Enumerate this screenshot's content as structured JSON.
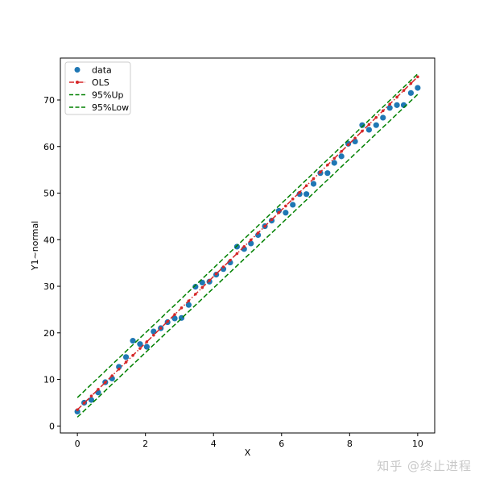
{
  "chart_data": {
    "type": "scatter",
    "xlabel": "X",
    "ylabel": "Y1~normal",
    "xlim": [
      -0.5,
      10.5
    ],
    "ylim": [
      -1.5,
      79
    ],
    "xticks": [
      0,
      2,
      4,
      6,
      8,
      10
    ],
    "yticks": [
      0,
      10,
      20,
      30,
      40,
      50,
      60,
      70
    ],
    "grid": false,
    "legend_position": "top-left",
    "x": [
      0,
      0.2,
      0.41,
      0.61,
      0.82,
      1.02,
      1.22,
      1.43,
      1.63,
      1.84,
      2.04,
      2.24,
      2.45,
      2.65,
      2.86,
      3.06,
      3.27,
      3.47,
      3.67,
      3.88,
      4.08,
      4.29,
      4.49,
      4.69,
      4.9,
      5.1,
      5.31,
      5.51,
      5.71,
      5.92,
      6.12,
      6.33,
      6.53,
      6.73,
      6.94,
      7.14,
      7.35,
      7.55,
      7.76,
      7.96,
      8.16,
      8.37,
      8.57,
      8.78,
      8.98,
      9.18,
      9.39,
      9.59,
      9.8,
      10
    ],
    "series": [
      {
        "name": "data",
        "style": "markers",
        "color": "#1f77b4",
        "values": [
          3.1,
          5.0,
          5.6,
          7.2,
          9.4,
          10.2,
          12.7,
          14.8,
          18.3,
          17.6,
          17.0,
          20.3,
          21.0,
          22.3,
          23.1,
          23.2,
          26.0,
          29.9,
          30.8,
          31.0,
          32.5,
          33.7,
          35.1,
          38.5,
          38.0,
          39.2,
          41.0,
          42.9,
          44.1,
          46.2,
          45.8,
          47.5,
          49.8,
          49.8,
          52.0,
          54.3,
          54.3,
          56.5,
          57.9,
          60.6,
          61.1,
          64.6,
          63.6,
          64.6,
          66.2,
          68.3,
          68.9,
          68.9,
          71.5,
          72.6
        ]
      },
      {
        "name": "OLS",
        "style": "dash-dot-markers",
        "color": "#d62728",
        "values": [
          3.5,
          4.93,
          6.43,
          7.86,
          9.36,
          10.79,
          12.22,
          13.72,
          15.15,
          16.65,
          18.08,
          19.51,
          21.01,
          22.44,
          23.94,
          25.37,
          26.87,
          28.3,
          29.73,
          31.23,
          32.66,
          34.16,
          35.59,
          37.02,
          38.52,
          39.95,
          41.45,
          42.88,
          44.31,
          45.81,
          47.24,
          48.74,
          50.17,
          51.6,
          53.1,
          54.53,
          56.03,
          57.46,
          58.96,
          60.39,
          61.82,
          63.32,
          64.75,
          66.25,
          67.68,
          69.11,
          70.61,
          72.04,
          73.54,
          74.97
        ]
      },
      {
        "name": "95%Up",
        "style": "dashed",
        "color": "#008000",
        "x": [
          0,
          10
        ],
        "values": [
          6.1,
          75.6
        ]
      },
      {
        "name": "95%Low",
        "style": "dashed",
        "color": "#008000",
        "x": [
          0,
          10
        ],
        "values": [
          1.9,
          71.2
        ]
      }
    ]
  },
  "watermark": "知乎 @终止进程"
}
